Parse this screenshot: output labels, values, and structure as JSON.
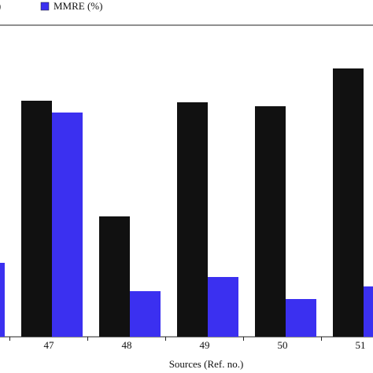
{
  "chart_data": {
    "type": "bar",
    "x_label": "Sources (Ref. no.)",
    "categories": [
      null,
      "47",
      "48",
      "49",
      "50",
      "51"
    ],
    "series": [
      {
        "name": "%)",
        "color": "#111111",
        "values": [
          null,
          300,
          153,
          298,
          293,
          341
        ]
      },
      {
        "name": "MMRE (%)",
        "color": "#3b30f0",
        "values": [
          94,
          285,
          58,
          76,
          48,
          64
        ]
      }
    ],
    "ylim": [
      0,
      396
    ]
  }
}
